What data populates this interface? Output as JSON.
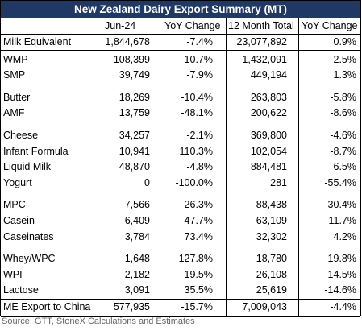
{
  "header": {
    "title": "New Zealand Dairy Export Summary (MT)"
  },
  "table": {
    "columns": [
      "Jun-24",
      "YoY Change",
      "12 Month Total",
      "YoY Change"
    ],
    "groups": [
      [
        [
          "Milk Equivalent",
          "1,844,678",
          "-7.4%",
          "23,077,892",
          "0.9%"
        ]
      ],
      [
        [
          "WMP",
          "108,399",
          "-10.7%",
          "1,432,091",
          "2.5%"
        ],
        [
          "SMP",
          "39,749",
          "-7.9%",
          "449,194",
          "1.3%"
        ]
      ],
      [
        [
          "Butter",
          "18,269",
          "-10.4%",
          "263,803",
          "-5.8%"
        ],
        [
          "AMF",
          "13,759",
          "-48.1%",
          "200,622",
          "-8.6%"
        ]
      ],
      [
        [
          "Cheese",
          "34,257",
          "-2.1%",
          "369,800",
          "-4.6%"
        ],
        [
          "Infant Formula",
          "10,941",
          "110.3%",
          "102,054",
          "-8.7%"
        ],
        [
          "Liquid Milk",
          "48,870",
          "-4.8%",
          "884,481",
          "6.5%"
        ],
        [
          "Yogurt",
          "0",
          "-100.0%",
          "281",
          "-55.4%"
        ]
      ],
      [
        [
          "MPC",
          "7,566",
          "26.3%",
          "88,438",
          "30.4%"
        ],
        [
          "Casein",
          "6,409",
          "47.7%",
          "63,109",
          "11.7%"
        ],
        [
          "Caseinates",
          "3,784",
          "73.4%",
          "32,302",
          "4.2%"
        ]
      ],
      [
        [
          "Whey/WPC",
          "1,648",
          "127.8%",
          "18,780",
          "19.8%"
        ],
        [
          "WPI",
          "2,182",
          "19.5%",
          "26,108",
          "14.5%"
        ],
        [
          "Lactose",
          "3,091",
          "35.5%",
          "25,619",
          "-14.6%"
        ]
      ],
      [
        [
          "ME Export to China",
          "577,935",
          "-15.7%",
          "7,009,043",
          "-4.4%"
        ]
      ]
    ]
  },
  "source": "Source: GTT, StoneX Calculations and Estimates"
}
